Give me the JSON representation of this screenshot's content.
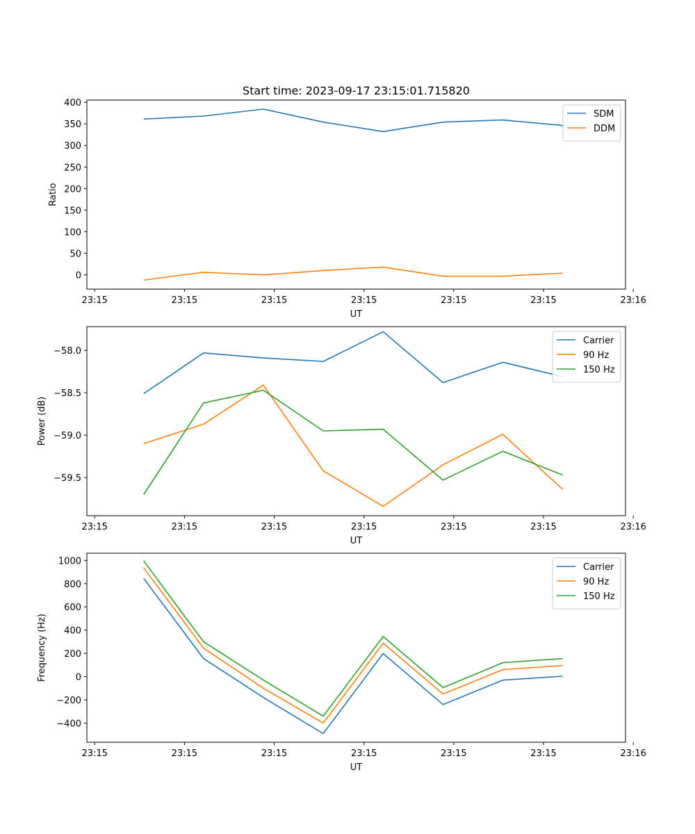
{
  "chart_data": [
    {
      "type": "line",
      "title": "Start time: 2023-09-17 23:15:01.715820",
      "xlabel": "UT",
      "ylabel": "Ratio",
      "x_tick_labels": [
        "23:15",
        "23:15",
        "23:15",
        "23:15",
        "23:15",
        "23:15",
        "23:16"
      ],
      "y_ticks": [
        0,
        50,
        100,
        150,
        200,
        250,
        300,
        350,
        400
      ],
      "y_tick_labels": [
        "0",
        "50",
        "100",
        "150",
        "200",
        "250",
        "300",
        "350",
        "400"
      ],
      "ylim": [
        -33,
        405
      ],
      "x": [
        1,
        2,
        3,
        4,
        5,
        6,
        7,
        8
      ],
      "xlim": [
        0.05,
        9.05
      ],
      "x_ticks": [
        0.18,
        1.68,
        3.18,
        4.68,
        6.18,
        7.68,
        9.18
      ],
      "legend_position": "upper right",
      "series": [
        {
          "name": "SDM",
          "color": "#1f77b4",
          "values": [
            361,
            368,
            384,
            354,
            332,
            354,
            359,
            346
          ]
        },
        {
          "name": "DDM",
          "color": "#ff7f0e",
          "values": [
            -12,
            6,
            0,
            10,
            18,
            -3,
            -3,
            4
          ]
        }
      ]
    },
    {
      "type": "line",
      "title": "",
      "xlabel": "UT",
      "ylabel": "Power (dB)",
      "x_tick_labels": [
        "23:15",
        "23:15",
        "23:15",
        "23:15",
        "23:15",
        "23:15",
        "23:16"
      ],
      "y_ticks": [
        -59.5,
        -59.0,
        -58.5,
        -58.0
      ],
      "y_tick_labels": [
        "−59.5",
        "−59.0",
        "−58.5",
        "−58.0"
      ],
      "ylim": [
        -59.95,
        -57.72
      ],
      "x": [
        1,
        2,
        3,
        4,
        5,
        6,
        7,
        8
      ],
      "xlim": [
        0.05,
        9.05
      ],
      "x_ticks": [
        0.18,
        1.68,
        3.18,
        4.68,
        6.18,
        7.68,
        9.18
      ],
      "legend_position": "upper right",
      "series": [
        {
          "name": "Carrier",
          "color": "#1f77b4",
          "values": [
            -58.51,
            -58.03,
            -58.09,
            -58.13,
            -57.78,
            -58.38,
            -58.14,
            -58.31
          ]
        },
        {
          "name": "90 Hz",
          "color": "#ff7f0e",
          "values": [
            -59.1,
            -58.87,
            -58.41,
            -59.42,
            -59.84,
            -59.35,
            -58.99,
            -59.64
          ]
        },
        {
          "name": "150 Hz",
          "color": "#2ca02c",
          "values": [
            -59.7,
            -58.62,
            -58.47,
            -58.95,
            -58.93,
            -59.53,
            -59.19,
            -59.47
          ]
        }
      ]
    },
    {
      "type": "line",
      "title": "",
      "xlabel": "UT",
      "ylabel": "Frequency (Hz)",
      "x_tick_labels": [
        "23:15",
        "23:15",
        "23:15",
        "23:15",
        "23:15",
        "23:15",
        "23:16"
      ],
      "y_ticks": [
        -400,
        -200,
        0,
        200,
        400,
        600,
        800,
        1000
      ],
      "y_tick_labels": [
        "−400",
        "−200",
        "0",
        "200",
        "400",
        "600",
        "800",
        "1000"
      ],
      "ylim": [
        -565,
        1062
      ],
      "x": [
        1,
        2,
        3,
        4,
        5,
        6,
        7,
        8
      ],
      "xlim": [
        0.05,
        9.05
      ],
      "x_ticks": [
        0.18,
        1.68,
        3.18,
        4.68,
        6.18,
        7.68,
        9.18
      ],
      "legend_position": "upper right",
      "series": [
        {
          "name": "Carrier",
          "color": "#1f77b4",
          "values": [
            845,
            155,
            -180,
            -490,
            198,
            -240,
            -30,
            3
          ]
        },
        {
          "name": "90 Hz",
          "color": "#ff7f0e",
          "values": [
            935,
            245,
            -100,
            -400,
            288,
            -150,
            60,
            95
          ]
        },
        {
          "name": "150 Hz",
          "color": "#2ca02c",
          "values": [
            995,
            300,
            -30,
            -340,
            345,
            -95,
            120,
            155
          ]
        }
      ]
    }
  ]
}
